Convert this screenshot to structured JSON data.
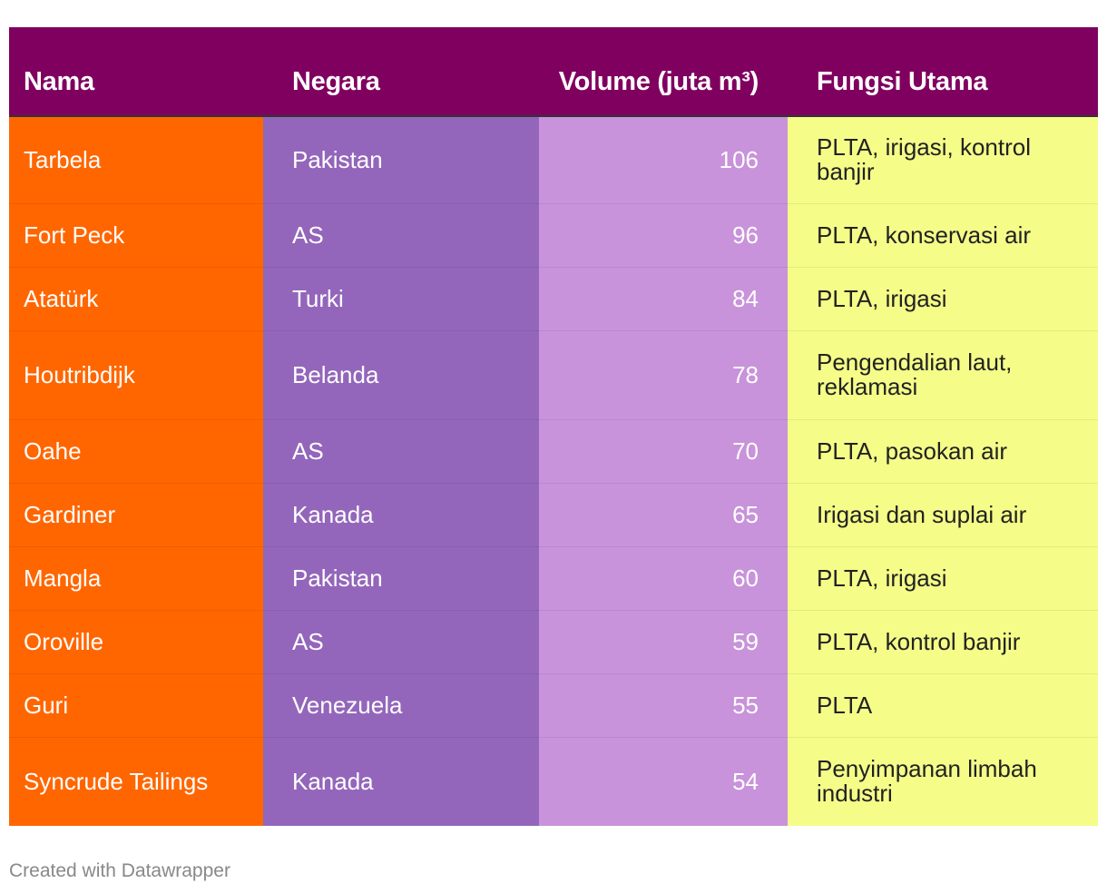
{
  "colors": {
    "header_bg": "#800060",
    "name_col": "#ff6600",
    "country_col": "#9366bb",
    "volume_col": "#c893da",
    "function_col": "#f5fd88"
  },
  "chart_data": {
    "type": "table",
    "columns": [
      "Nama",
      "Negara",
      "Volume (juta m³)",
      "Fungsi Utama"
    ],
    "rows": [
      [
        "Tarbela",
        "Pakistan",
        "106",
        "PLTA, irigasi, kontrol banjir"
      ],
      [
        "Fort Peck",
        "AS",
        "96",
        "PLTA, konservasi air"
      ],
      [
        "Atatürk",
        "Turki",
        "84",
        "PLTA, irigasi"
      ],
      [
        "Houtribdijk",
        "Belanda",
        "78",
        "Pengendalian laut, reklamasi"
      ],
      [
        "Oahe",
        "AS",
        "70",
        "PLTA, pasokan air"
      ],
      [
        "Gardiner",
        "Kanada",
        "65",
        "Irigasi dan suplai air"
      ],
      [
        "Mangla",
        "Pakistan",
        "60",
        "PLTA, irigasi"
      ],
      [
        "Oroville",
        "AS",
        "59",
        "PLTA, kontrol banjir"
      ],
      [
        "Guri",
        "Venezuela",
        "55",
        "PLTA"
      ],
      [
        "Syncrude Tailings",
        "Kanada",
        "54",
        "Penyimpanan limbah industri"
      ]
    ]
  },
  "footer": {
    "credit": "Created with Datawrapper"
  }
}
